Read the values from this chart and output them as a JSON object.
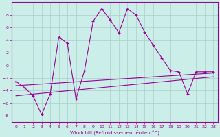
{
  "xlabel": "Windchill (Refroidissement éolien,°C)",
  "bg_color": "#cceee8",
  "grid_color": "#aacccc",
  "line_color": "#990099",
  "xlim": [
    -0.5,
    23.5
  ],
  "ylim": [
    -9,
    10
  ],
  "yticks": [
    -8,
    -6,
    -4,
    -2,
    0,
    2,
    4,
    6,
    8
  ],
  "xticks": [
    0,
    1,
    2,
    3,
    4,
    5,
    6,
    7,
    8,
    9,
    10,
    11,
    12,
    13,
    14,
    15,
    16,
    17,
    18,
    19,
    20,
    21,
    22,
    23
  ],
  "curve1_x": [
    0,
    1,
    2,
    3,
    4,
    5,
    6,
    7,
    8,
    9,
    10,
    11,
    12,
    13,
    14,
    15,
    16,
    17,
    18,
    19,
    20,
    21,
    22,
    23
  ],
  "curve1_y": [
    -2.5,
    -3.5,
    -4.8,
    -7.8,
    -4.5,
    4.5,
    3.5,
    -5.3,
    -0.8,
    7.0,
    9.0,
    7.2,
    5.2,
    9.0,
    8.0,
    5.3,
    3.2,
    1.2,
    -0.8,
    -1.0,
    -4.5,
    -1.0,
    -1.0,
    -1.0
  ],
  "line2_x": [
    0,
    23
  ],
  "line2_y": [
    -3.2,
    -1.2
  ],
  "line3_x": [
    0,
    23
  ],
  "line3_y": [
    -4.8,
    -1.8
  ]
}
